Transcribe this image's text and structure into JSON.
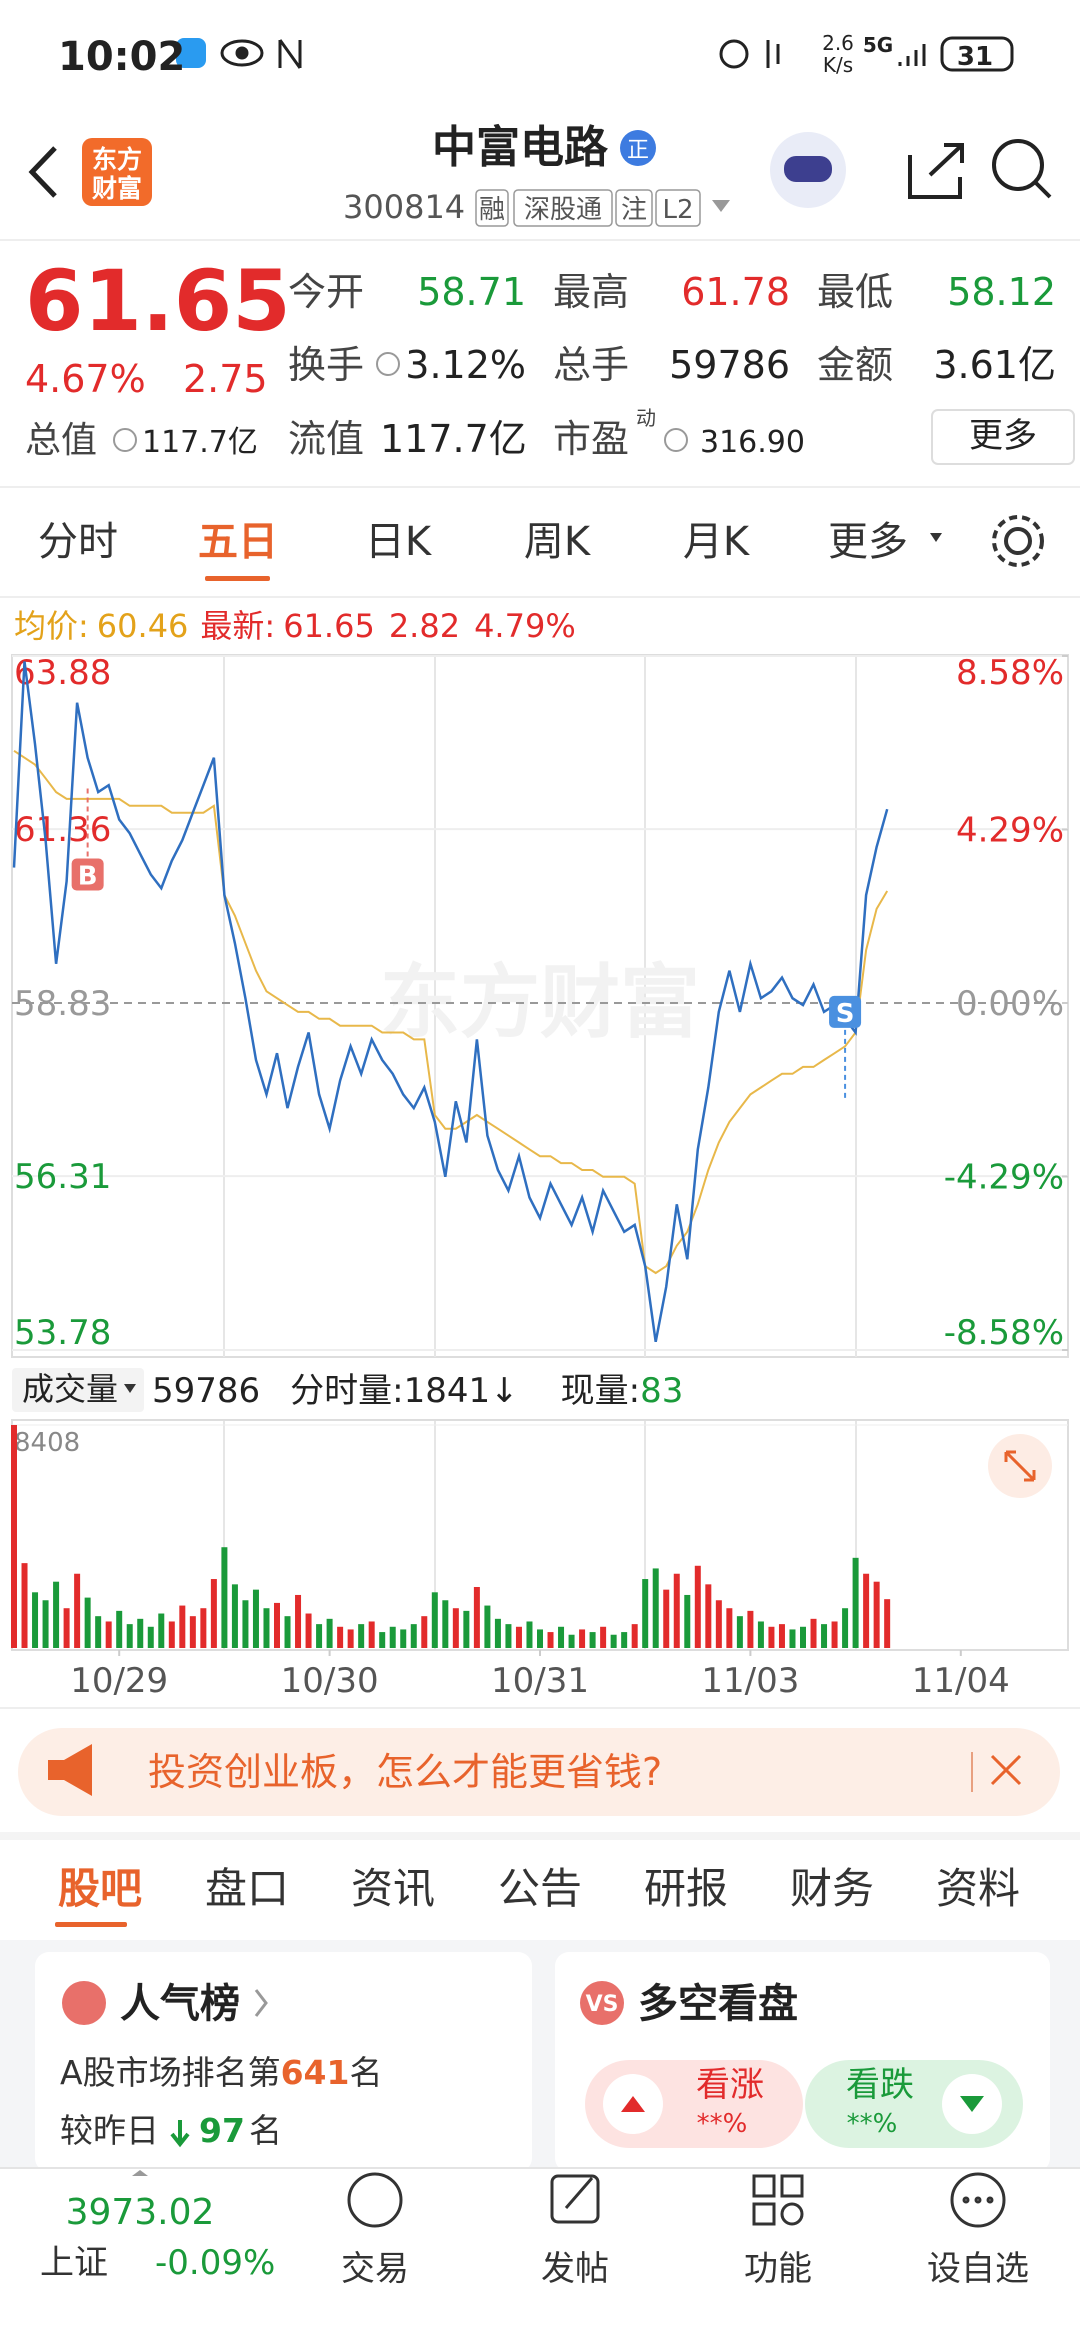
{
  "status_bar": {
    "time": "10:02",
    "speed": "2.6",
    "speed_unit": "K/s",
    "network": "5G",
    "battery": "31"
  },
  "header": {
    "logo": [
      "东方",
      "财富"
    ],
    "title": "中富电路",
    "title_badge": "正",
    "code": "300814",
    "tags": [
      "融",
      "深股通",
      "注",
      "L2"
    ]
  },
  "quote": {
    "price": "61.65",
    "change_pct": "4.67%",
    "change": "2.75",
    "fields": [
      {
        "label": "今开",
        "value": "58.71"
      },
      {
        "label": "最高",
        "value": "61.78"
      },
      {
        "label": "最低",
        "value": "58.12"
      },
      {
        "label": "换手",
        "value": "3.12%"
      },
      {
        "label": "总手",
        "value": "59786"
      },
      {
        "label": "金额",
        "value": "3.61亿"
      },
      {
        "label": "总值",
        "value": "117.7亿"
      },
      {
        "label": "流值",
        "value": "117.7亿"
      },
      {
        "label": "市盈",
        "sup": "动",
        "value": "316.90"
      }
    ],
    "more": "更多"
  },
  "tabs": {
    "items": [
      "分时",
      "五日",
      "日K",
      "周K",
      "月K",
      "更多"
    ],
    "active": 1
  },
  "chart_data": [
    {
      "type": "line",
      "summary": {
        "avg_label": "均价:",
        "avg": "60.46",
        "last_label": "最新:",
        "last": "61.65",
        "change": "2.82",
        "change_pct": "4.79%"
      },
      "watermark": "东方财富",
      "x": [
        0,
        1,
        2,
        3,
        4,
        5,
        6,
        7,
        8,
        9,
        10,
        11,
        12,
        13,
        14,
        15,
        16,
        17,
        18,
        19,
        20,
        21,
        22,
        23,
        24,
        25,
        26,
        27,
        28,
        29,
        30,
        31,
        32,
        33,
        34,
        35,
        36,
        37,
        38,
        39,
        40,
        41,
        42,
        43,
        44,
        45,
        46,
        47,
        48,
        49,
        50,
        51,
        52,
        53,
        54,
        55,
        56,
        57,
        58,
        59,
        60,
        61,
        62,
        63,
        64,
        65,
        66,
        67,
        68,
        69,
        70,
        71,
        72,
        73,
        74,
        75,
        76,
        77,
        78,
        79,
        80,
        81,
        82,
        83
      ],
      "xlim": [
        0,
        100
      ],
      "ylim": [
        53.78,
        63.88
      ],
      "yticks": [
        63.88,
        61.36,
        58.83,
        56.31,
        53.78
      ],
      "y2lim": [
        -8.58,
        8.58
      ],
      "y2ticks": [
        {
          "value": 8.58,
          "label": "8.58%"
        },
        {
          "value": 4.29,
          "label": "4.29%"
        },
        {
          "value": 0,
          "label": "0.00%"
        },
        {
          "value": -4.29,
          "label": "-4.29%"
        },
        {
          "value": -8.58,
          "label": "-8.58%"
        }
      ],
      "series": [
        {
          "color": "#2f6fc0",
          "values": [
            60.8,
            63.8,
            62.6,
            61.2,
            59.4,
            60.6,
            63.2,
            62.4,
            61.9,
            62.0,
            61.5,
            61.3,
            61.0,
            60.7,
            60.5,
            60.9,
            61.2,
            61.6,
            62.0,
            62.4,
            60.4,
            59.7,
            58.9,
            58.0,
            57.5,
            58.1,
            57.3,
            57.9,
            58.4,
            57.5,
            57.0,
            57.7,
            58.2,
            57.8,
            58.3,
            58.0,
            57.8,
            57.5,
            57.3,
            57.6,
            57.1,
            56.3,
            57.4,
            56.8,
            58.3,
            56.9,
            56.4,
            56.1,
            56.6,
            56.0,
            55.7,
            56.2,
            55.9,
            55.6,
            56.0,
            55.5,
            56.1,
            55.8,
            55.5,
            55.6,
            55.0,
            53.9,
            54.7,
            55.9,
            55.1,
            56.7,
            57.6,
            58.7,
            59.3,
            58.7,
            59.4,
            58.9,
            59.0,
            59.2,
            58.9,
            58.8,
            59.1,
            58.7,
            58.8,
            58.6,
            58.4,
            60.4,
            61.1,
            61.65
          ]
        },
        {
          "color": "#e8b84a",
          "values": [
            62.5,
            62.4,
            62.3,
            62.1,
            61.9,
            61.8,
            61.8,
            61.8,
            61.8,
            61.8,
            61.8,
            61.7,
            61.7,
            61.7,
            61.7,
            61.6,
            61.6,
            61.6,
            61.6,
            61.7,
            60.4,
            60.1,
            59.7,
            59.3,
            59.0,
            58.9,
            58.8,
            58.7,
            58.7,
            58.6,
            58.6,
            58.5,
            58.5,
            58.5,
            58.5,
            58.4,
            58.4,
            58.4,
            58.3,
            58.3,
            57.2,
            57.0,
            57.0,
            57.1,
            57.2,
            57.1,
            57.0,
            56.9,
            56.8,
            56.7,
            56.6,
            56.6,
            56.5,
            56.5,
            56.4,
            56.4,
            56.3,
            56.3,
            56.3,
            56.2,
            55.0,
            54.9,
            55.0,
            55.3,
            55.5,
            55.9,
            56.4,
            56.8,
            57.1,
            57.3,
            57.5,
            57.6,
            57.7,
            57.8,
            57.8,
            57.9,
            57.9,
            58.0,
            58.1,
            58.2,
            58.4,
            59.6,
            60.2,
            60.46
          ]
        }
      ],
      "annotations": [
        {
          "text": "B",
          "x": 7,
          "y": 60.7,
          "color": "#e8706a"
        },
        {
          "text": "S",
          "x": 79,
          "y": 58.7,
          "color": "#4a90e0"
        }
      ]
    },
    {
      "type": "bar",
      "header": {
        "label": "成交量",
        "total": "59786",
        "tick_label": "分时量:1841↓",
        "now_label": "现量:",
        "now": "83"
      },
      "x": [
        0,
        1,
        2,
        3,
        4,
        5,
        6,
        7,
        8,
        9,
        10,
        11,
        12,
        13,
        14,
        15,
        16,
        17,
        18,
        19,
        20,
        21,
        22,
        23,
        24,
        25,
        26,
        27,
        28,
        29,
        30,
        31,
        32,
        33,
        34,
        35,
        36,
        37,
        38,
        39,
        40,
        41,
        42,
        43,
        44,
        45,
        46,
        47,
        48,
        49,
        50,
        51,
        52,
        53,
        54,
        55,
        56,
        57,
        58,
        59,
        60,
        61,
        62,
        63,
        64,
        65,
        66,
        67,
        68,
        69,
        70,
        71,
        72,
        73,
        74,
        75,
        76,
        77,
        78,
        79,
        80,
        81,
        82,
        83
      ],
      "xlim": [
        0,
        100
      ],
      "xticks": [
        {
          "value": 10,
          "label": "10/29"
        },
        {
          "value": 30,
          "label": "10/30"
        },
        {
          "value": 50,
          "label": "10/31"
        },
        {
          "value": 70,
          "label": "11/03"
        },
        {
          "value": 90,
          "label": "11/04"
        }
      ],
      "ylim": [
        0,
        8408
      ],
      "yticks": [
        8408
      ],
      "up_color": "#e22b2b",
      "down_color": "#1a9a3a",
      "values": [
        8408,
        3200,
        2100,
        1800,
        2500,
        1500,
        2800,
        1900,
        1200,
        1000,
        1400,
        900,
        1100,
        800,
        1300,
        1000,
        1600,
        1200,
        1500,
        2600,
        3800,
        2400,
        1800,
        2200,
        1500,
        1700,
        1200,
        2000,
        1300,
        900,
        1100,
        800,
        700,
        900,
        1000,
        600,
        800,
        700,
        900,
        1200,
        2100,
        1800,
        1500,
        1400,
        2300,
        1600,
        1100,
        900,
        800,
        1000,
        700,
        600,
        800,
        500,
        700,
        600,
        800,
        500,
        600,
        900,
        2600,
        3000,
        2200,
        2800,
        2000,
        3100,
        2400,
        1800,
        1500,
        1200,
        1400,
        1000,
        800,
        900,
        700,
        800,
        1100,
        900,
        1000,
        1500,
        3400,
        2800,
        2500,
        1841
      ]
    }
  ],
  "ad": {
    "text": "投资创业板，怎么才能更省钱?"
  },
  "sections": {
    "items": [
      "股吧",
      "盘口",
      "资讯",
      "公告",
      "研报",
      "财务",
      "资料"
    ],
    "active": 0
  },
  "popularity": {
    "title": "人气榜",
    "rank_prefix": "A股市场排名第",
    "rank": "641",
    "rank_suffix": "名",
    "change_prefix": "较昨日",
    "change": "97",
    "change_suffix": "名"
  },
  "sentiment": {
    "icon": "VS",
    "title": "多空看盘",
    "up_label": "看涨",
    "up_value": "**%",
    "down_label": "看跌",
    "down_value": "**%"
  },
  "bottom_bar": {
    "index_value": "3973.02",
    "index_name": "上证",
    "index_change": "-0.09%",
    "nav": [
      "交易",
      "发帖",
      "功能",
      "设自选"
    ]
  }
}
